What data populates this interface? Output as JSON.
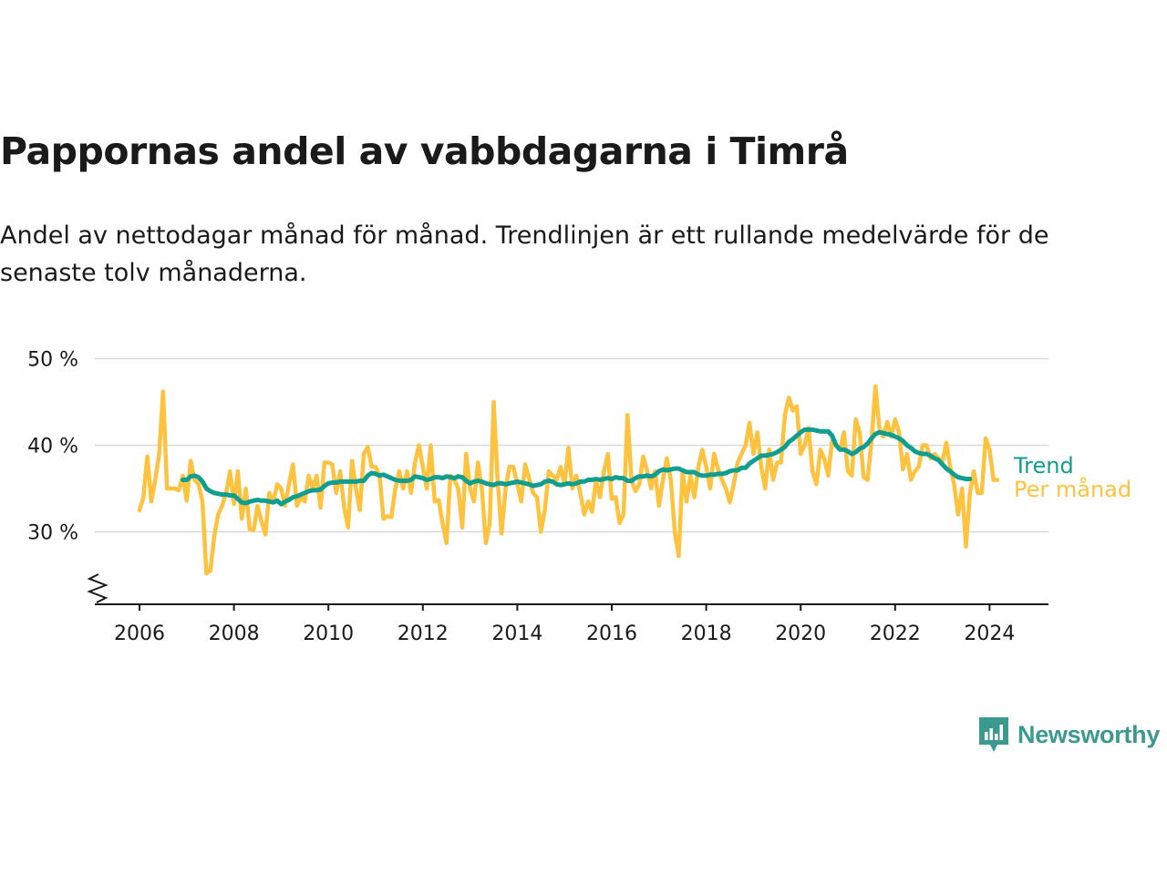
{
  "title": "Pappornas andel av vabbdagarna i Timrå",
  "subtitle": "Andel av nettodagar månad för månad. Trendlinjen är ett rullande medelvärde för de senaste tolv månaderna.",
  "brand": {
    "name": "Newsworthy",
    "icon": "newsworthy-logo-icon",
    "color": "#3a9a90"
  },
  "colors": {
    "monthly": "#fdc33f",
    "trend": "#119e8e",
    "grid": "#d9d9d9",
    "axis": "#1a1a1a"
  },
  "chart_data": {
    "type": "line",
    "x_type": "date",
    "ylim": [
      22,
      50
    ],
    "yticks": [
      30,
      40,
      50
    ],
    "ytick_labels": [
      "30 %",
      "40 %",
      "50 %"
    ],
    "y_axis_break": true,
    "xlim": [
      "2005-06",
      "2025-06"
    ],
    "xticks": [
      2006,
      2008,
      2010,
      2012,
      2014,
      2016,
      2018,
      2020,
      2022,
      2024
    ],
    "grid": "horizontal",
    "legend": "end-of-line labels, right",
    "series": [
      {
        "name": "Per månad",
        "start": "2006-01",
        "values": [
          32.5,
          34,
          38.7,
          33.5,
          36,
          39,
          46.2,
          35,
          35,
          35,
          34.8,
          36.5,
          33.6,
          38.2,
          36,
          35.5,
          33.5,
          25.2,
          25.5,
          29.5,
          32,
          33,
          34.5,
          37,
          33.2,
          37,
          31.5,
          35,
          30.3,
          30.2,
          33,
          31.2,
          29.7,
          34.5,
          33.5,
          35.5,
          35,
          33,
          35.5,
          37.8,
          33,
          34,
          33.5,
          36.5,
          35,
          36.5,
          32.8,
          38,
          38,
          37.8,
          34.5,
          37,
          32.8,
          30.5,
          38.2,
          35,
          32.5,
          39,
          39.8,
          37.5,
          37.5,
          36.5,
          31.5,
          31.8,
          31.7,
          35,
          37,
          35,
          37,
          34.5,
          38,
          40,
          37.5,
          35,
          40,
          33.5,
          33.7,
          31,
          28.7,
          36.5,
          36,
          35,
          30.5,
          39,
          35,
          33.5,
          38,
          35,
          28.7,
          31,
          45,
          36,
          29.8,
          35,
          37.5,
          37.5,
          35.5,
          33.5,
          37.8,
          36.2,
          34.5,
          34,
          30,
          32.5,
          37,
          36.5,
          36,
          37.5,
          35.5,
          39.7,
          35,
          36.5,
          34.5,
          32,
          33.5,
          32.3,
          36,
          34,
          37,
          39,
          33.8,
          34,
          31,
          32,
          43.5,
          36,
          34.7,
          35.5,
          38.7,
          37,
          35,
          37,
          33,
          36,
          38.5,
          36,
          30,
          27.2,
          37,
          33.5,
          36.5,
          34,
          37.5,
          39.5,
          37.5,
          35,
          39,
          37.3,
          36,
          35,
          33.4,
          35.5,
          38,
          39,
          40,
          42.6,
          39,
          41.5,
          37.5,
          35,
          39.5,
          36,
          38,
          38,
          43.5,
          45.5,
          44,
          44.5,
          39,
          40,
          42,
          37,
          35.5,
          39.5,
          38.5,
          36.5,
          40.5,
          40,
          39.5,
          41.5,
          37,
          36.5,
          43,
          41.5,
          36.3,
          36,
          40.5,
          46.8,
          42,
          41,
          42.7,
          41,
          43,
          41.5,
          37.2,
          39,
          36,
          37,
          37.5,
          40,
          40,
          38.5,
          39,
          38.5,
          38,
          40.3,
          37.5,
          35.5,
          32,
          35,
          28.3,
          34.5,
          37,
          34.5,
          34.5,
          40.8,
          39.5,
          36,
          36
        ]
      },
      {
        "name": "Trend",
        "start": "2006-12",
        "values": [
          36,
          36,
          36.4,
          36.5,
          36.3,
          35.8,
          35,
          34.7,
          34.5,
          34.4,
          34.3,
          34.3,
          34.2,
          34.2,
          33.8,
          33.4,
          33.3,
          33.5,
          33.6,
          33.7,
          33.6,
          33.6,
          33.5,
          33.4,
          33.6,
          33.2,
          33.5,
          33.7,
          34,
          34.1,
          34.3,
          34.5,
          34.7,
          34.8,
          34.8,
          34.9,
          35.3,
          35.6,
          35.7,
          35.7,
          35.8,
          35.8,
          35.8,
          35.8,
          35.8,
          35.9,
          35.9,
          36.5,
          36.8,
          36.7,
          36.5,
          36.6,
          36.4,
          36.2,
          36,
          35.9,
          35.9,
          35.9,
          36,
          36.4,
          36.3,
          36.2,
          36,
          36.1,
          36.3,
          36.3,
          36.2,
          36.4,
          36.3,
          36.2,
          36.4,
          36.3,
          35.9,
          35.6,
          35.8,
          35.9,
          35.8,
          35.6,
          35.5,
          35.4,
          35.6,
          35.6,
          35.5,
          35.6,
          35.7,
          35.8,
          35.7,
          35.6,
          35.5,
          35.3,
          35.4,
          35.5,
          35.8,
          35.9,
          35.8,
          35.5,
          35.4,
          35.5,
          35.6,
          35.5,
          35.6,
          35.8,
          35.8,
          36,
          36,
          36.1,
          36,
          36.1,
          36.2,
          36.1,
          36.3,
          36.2,
          36.2,
          35.9,
          35.9,
          36.2,
          36.4,
          36.4,
          36.5,
          36.4,
          36.6,
          37,
          37.2,
          37.1,
          37.2,
          37.3,
          37.3,
          37.1,
          36.9,
          36.9,
          36.9,
          36.6,
          36.5,
          36.5,
          36.6,
          36.6,
          36.7,
          36.7,
          36.8,
          37,
          37.1,
          37.1,
          37.4,
          37.4,
          37.9,
          38.2,
          38.5,
          38.8,
          38.8,
          38.9,
          39,
          39.2,
          39.5,
          39.8,
          40.4,
          40.7,
          41.1,
          41.5,
          41.8,
          41.8,
          41.8,
          41.7,
          41.6,
          41.6,
          41.6,
          41.1,
          40,
          39.5,
          39.5,
          39.3,
          39,
          39.2,
          39.6,
          39.8,
          40.2,
          40.8,
          41.3,
          41.5,
          41.4,
          41.3,
          41.2,
          41,
          40.8,
          40.5,
          40,
          39.7,
          39.3,
          39.1,
          39,
          39,
          38.8,
          38.5,
          38.3,
          37.8,
          37.3,
          37,
          36.6,
          36.3,
          36.2,
          36.1,
          36.1
        ]
      }
    ]
  }
}
